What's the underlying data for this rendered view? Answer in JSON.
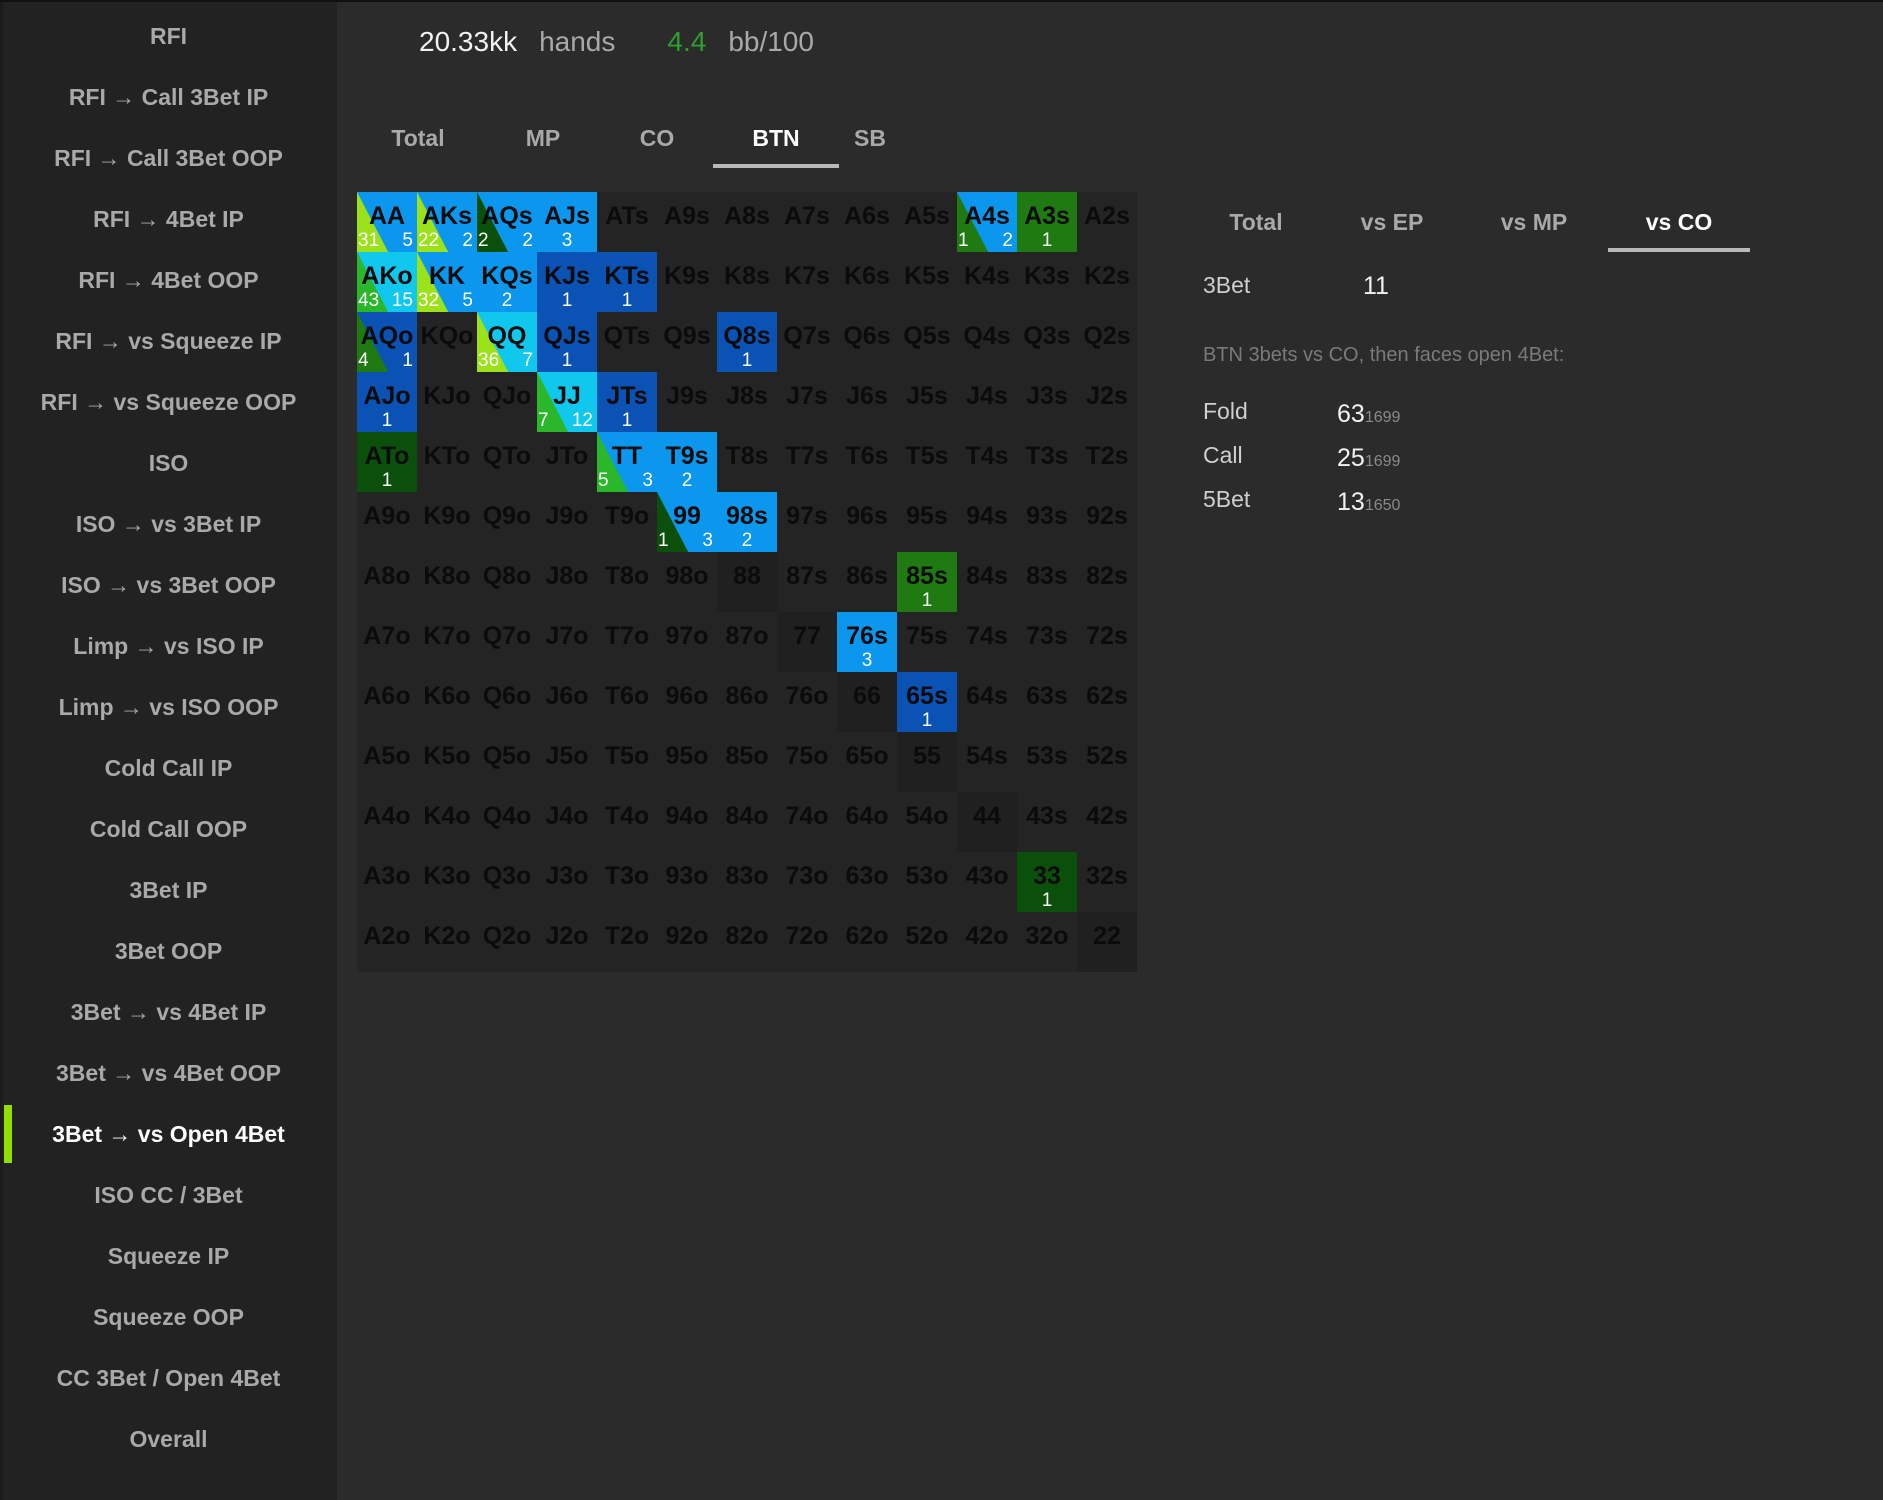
{
  "sidebar": {
    "items": [
      {
        "label": "RFI"
      },
      {
        "label": "RFI → Call 3Bet IP"
      },
      {
        "label": "RFI → Call 3Bet OOP"
      },
      {
        "label": "RFI → 4Bet IP"
      },
      {
        "label": "RFI → 4Bet OOP"
      },
      {
        "label": "RFI → vs Squeeze IP"
      },
      {
        "label": "RFI → vs Squeeze OOP"
      },
      {
        "label": "ISO"
      },
      {
        "label": "ISO → vs 3Bet IP"
      },
      {
        "label": "ISO → vs 3Bet OOP"
      },
      {
        "label": "Limp → vs ISO IP"
      },
      {
        "label": "Limp → vs ISO OOP"
      },
      {
        "label": "Cold Call IP"
      },
      {
        "label": "Cold Call OOP"
      },
      {
        "label": "3Bet IP"
      },
      {
        "label": "3Bet OOP"
      },
      {
        "label": "3Bet → vs 4Bet IP"
      },
      {
        "label": "3Bet → vs 4Bet OOP"
      },
      {
        "label": "3Bet → vs Open 4Bet",
        "active": true
      },
      {
        "label": "ISO CC / 3Bet"
      },
      {
        "label": "Squeeze IP"
      },
      {
        "label": "Squeeze OOP"
      },
      {
        "label": "CC 3Bet / Open 4Bet"
      },
      {
        "label": "Overall"
      }
    ]
  },
  "stats": {
    "hands_value": "20.33kk",
    "hands_label": "hands",
    "winrate_value": "4.4",
    "winrate_label": "bb/100",
    "winrate_color": "#2f9e2f"
  },
  "position_tabs": [
    {
      "label": "Total"
    },
    {
      "label": "MP"
    },
    {
      "label": "CO"
    },
    {
      "label": "BTN",
      "active": true
    },
    {
      "label": "SB"
    }
  ],
  "colors": {
    "lime": "#9be21a",
    "green": "#2ab82a",
    "darkgreen": "#0a4f0a",
    "midgreen": "#1f7a12",
    "blue": "#0c97ee",
    "darkblue": "#0a52b4",
    "cyan": "#10c8ee",
    "empty": "#242424",
    "pair_empty": "#202020"
  },
  "range_grid": {
    "rows": [
      [
        "AA",
        "AKs",
        "AQs",
        "AJs",
        "ATs",
        "A9s",
        "A8s",
        "A7s",
        "A6s",
        "A5s",
        "A4s",
        "A3s",
        "A2s"
      ],
      [
        "AKo",
        "KK",
        "KQs",
        "KJs",
        "KTs",
        "K9s",
        "K8s",
        "K7s",
        "K6s",
        "K5s",
        "K4s",
        "K3s",
        "K2s"
      ],
      [
        "AQo",
        "KQo",
        "QQ",
        "QJs",
        "QTs",
        "Q9s",
        "Q8s",
        "Q7s",
        "Q6s",
        "Q5s",
        "Q4s",
        "Q3s",
        "Q2s"
      ],
      [
        "AJo",
        "KJo",
        "QJo",
        "JJ",
        "JTs",
        "J9s",
        "J8s",
        "J7s",
        "J6s",
        "J5s",
        "J4s",
        "J3s",
        "J2s"
      ],
      [
        "ATo",
        "KTo",
        "QTo",
        "JTo",
        "TT",
        "T9s",
        "T8s",
        "T7s",
        "T6s",
        "T5s",
        "T4s",
        "T3s",
        "T2s"
      ],
      [
        "A9o",
        "K9o",
        "Q9o",
        "J9o",
        "T9o",
        "99",
        "98s",
        "97s",
        "96s",
        "95s",
        "94s",
        "93s",
        "92s"
      ],
      [
        "A8o",
        "K8o",
        "Q8o",
        "J8o",
        "T8o",
        "98o",
        "88",
        "87s",
        "86s",
        "85s",
        "84s",
        "83s",
        "82s"
      ],
      [
        "A7o",
        "K7o",
        "Q7o",
        "J7o",
        "T7o",
        "97o",
        "87o",
        "77",
        "76s",
        "75s",
        "74s",
        "73s",
        "72s"
      ],
      [
        "A6o",
        "K6o",
        "Q6o",
        "J6o",
        "T6o",
        "96o",
        "86o",
        "76o",
        "66",
        "65s",
        "64s",
        "63s",
        "62s"
      ],
      [
        "A5o",
        "K5o",
        "Q5o",
        "J5o",
        "T5o",
        "95o",
        "85o",
        "75o",
        "65o",
        "55",
        "54s",
        "53s",
        "52s"
      ],
      [
        "A4o",
        "K4o",
        "Q4o",
        "J4o",
        "T4o",
        "94o",
        "84o",
        "74o",
        "64o",
        "54o",
        "44",
        "43s",
        "42s"
      ],
      [
        "A3o",
        "K3o",
        "Q3o",
        "J3o",
        "T3o",
        "93o",
        "83o",
        "73o",
        "63o",
        "53o",
        "43o",
        "33",
        "32s"
      ],
      [
        "A2o",
        "K2o",
        "Q2o",
        "J2o",
        "T2o",
        "92o",
        "82o",
        "72o",
        "62o",
        "52o",
        "42o",
        "32o",
        "22"
      ]
    ],
    "highlighted": {
      "AA": {
        "fill": [
          "lime",
          "blue"
        ],
        "counts": [
          "31",
          "5"
        ]
      },
      "AKs": {
        "fill": [
          "lime",
          "blue"
        ],
        "counts": [
          "22",
          "2"
        ]
      },
      "AQs": {
        "fill": [
          "darkgreen",
          "blue"
        ],
        "counts": [
          "2",
          "2"
        ]
      },
      "AJs": {
        "fill": [
          "blue"
        ],
        "counts": [
          "3"
        ]
      },
      "A4s": {
        "fill": [
          "midgreen",
          "blue"
        ],
        "counts": [
          "1",
          "2"
        ]
      },
      "A3s": {
        "fill": [
          "midgreen"
        ],
        "counts": [
          "1"
        ]
      },
      "AKo": {
        "fill": [
          "green",
          "cyan"
        ],
        "counts": [
          "43",
          "15"
        ]
      },
      "KK": {
        "fill": [
          "lime",
          "blue"
        ],
        "counts": [
          "32",
          "5"
        ]
      },
      "KQs": {
        "fill": [
          "blue"
        ],
        "counts": [
          "2"
        ]
      },
      "KJs": {
        "fill": [
          "darkblue"
        ],
        "counts": [
          "1"
        ]
      },
      "KTs": {
        "fill": [
          "darkblue"
        ],
        "counts": [
          "1"
        ]
      },
      "AQo": {
        "fill": [
          "midgreen",
          "darkblue"
        ],
        "counts": [
          "4",
          "1"
        ]
      },
      "QQ": {
        "fill": [
          "lime",
          "cyan"
        ],
        "counts": [
          "36",
          "7"
        ]
      },
      "QJs": {
        "fill": [
          "darkblue"
        ],
        "counts": [
          "1"
        ]
      },
      "Q8s": {
        "fill": [
          "darkblue"
        ],
        "counts": [
          "1"
        ]
      },
      "AJo": {
        "fill": [
          "darkblue"
        ],
        "counts": [
          "1"
        ]
      },
      "JJ": {
        "fill": [
          "green",
          "cyan"
        ],
        "counts": [
          "7",
          "12"
        ]
      },
      "JTs": {
        "fill": [
          "darkblue"
        ],
        "counts": [
          "1"
        ]
      },
      "ATo": {
        "fill": [
          "darkgreen"
        ],
        "counts": [
          "1"
        ]
      },
      "TT": {
        "fill": [
          "green",
          "blue"
        ],
        "counts": [
          "5",
          "3"
        ]
      },
      "T9s": {
        "fill": [
          "blue"
        ],
        "counts": [
          "2"
        ]
      },
      "99": {
        "fill": [
          "darkgreen",
          "blue"
        ],
        "counts": [
          "1",
          "3"
        ]
      },
      "98s": {
        "fill": [
          "blue"
        ],
        "counts": [
          "2"
        ]
      },
      "85s": {
        "fill": [
          "midgreen"
        ],
        "counts": [
          "1"
        ]
      },
      "76s": {
        "fill": [
          "blue"
        ],
        "counts": [
          "3"
        ]
      },
      "65s": {
        "fill": [
          "darkblue"
        ],
        "counts": [
          "1"
        ]
      },
      "33": {
        "fill": [
          "darkgreen"
        ],
        "counts": [
          "1"
        ]
      }
    }
  },
  "vs_tabs": [
    {
      "label": "Total"
    },
    {
      "label": "vs EP"
    },
    {
      "label": "vs MP"
    },
    {
      "label": "vs CO",
      "active": true
    }
  ],
  "panel": {
    "threebet_label": "3Bet",
    "threebet_value": "11",
    "note": "BTN 3bets vs CO, then faces open 4Bet:",
    "responses": [
      {
        "label": "Fold",
        "value": "63",
        "sample": "1699"
      },
      {
        "label": "Call",
        "value": "25",
        "sample": "1699"
      },
      {
        "label": "5Bet",
        "value": "13",
        "sample": "1650"
      }
    ]
  }
}
